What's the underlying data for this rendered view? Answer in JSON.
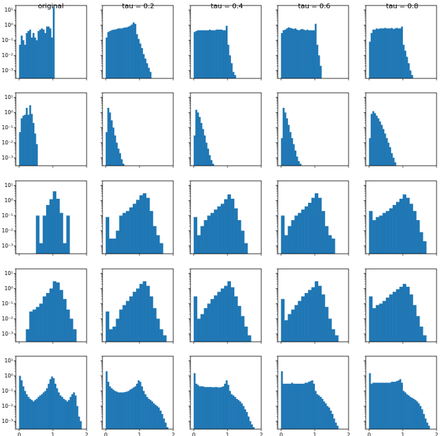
{
  "figure": {
    "column_titles": [
      "original",
      "tau = 0.2",
      "tau = 0.4",
      "tau = 0.6",
      "tau = 0.8"
    ]
  },
  "chart_data": {
    "type": "bar",
    "layout": "5x5 grid of log-scale histograms",
    "bar_color": "#1f77b4",
    "y_scale": "log",
    "ylim": [
      0.0003,
      20
    ],
    "y_ticks": [
      10,
      1,
      0.1,
      0.01,
      0.001
    ],
    "y_tick_labels": [
      "10¹",
      "10⁰",
      "10⁻¹",
      "10⁻²",
      "10⁻³"
    ],
    "x_ticks": [
      0,
      1,
      2
    ],
    "x_tick_labels": [
      "0",
      "1",
      "2"
    ],
    "xlim": [
      -0.1,
      2.0
    ],
    "rows": [
      {
        "panels": [
          {
            "bin_start": 0.0,
            "bin_width": 0.05,
            "values": [
              0.05,
              0.2,
              0.1,
              0.05,
              0.3,
              0.4,
              0.5,
              0.15,
              0.3,
              0.15,
              0.1,
              0.4,
              0.5,
              0.6,
              0.5,
              0.3,
              0.8,
              0.8,
              0.6,
              0.15,
              16
            ]
          },
          {
            "bin_start": 0.0,
            "bin_width": 0.05,
            "values": [
              0.15,
              0.35,
              0.4,
              0.45,
              0.5,
              0.5,
              0.55,
              0.6,
              0.6,
              0.6,
              0.65,
              0.7,
              0.7,
              0.8,
              0.9,
              1.1,
              1.5,
              1.2,
              0.25,
              0.12,
              0.06,
              0.03,
              0.012,
              0.006,
              0.003,
              0.0015,
              0.0008
            ]
          },
          {
            "bin_start": 0.0,
            "bin_width": 0.05,
            "values": [
              0.35,
              0.4,
              0.45,
              0.45,
              0.45,
              0.45,
              0.45,
              0.45,
              0.45,
              0.5,
              0.45,
              0.45,
              0.45,
              0.5,
              0.5,
              0.5,
              0.5,
              0.45,
              0.45,
              0.9,
              0.05,
              0.01,
              0.003,
              0.0008,
              0.0005
            ]
          },
          {
            "bin_start": 0.0,
            "bin_width": 0.05,
            "values": [
              0.3,
              0.45,
              0.5,
              0.6,
              0.7,
              0.65,
              0.6,
              0.55,
              0.6,
              0.5,
              0.45,
              0.5,
              0.55,
              0.5,
              0.45,
              0.5,
              0.45,
              0.45,
              0.45,
              0.45,
              1.2,
              0.05,
              0.01,
              0.002
            ]
          },
          {
            "bin_start": 0.0,
            "bin_width": 0.05,
            "values": [
              0.08,
              0.3,
              0.5,
              0.5,
              0.6,
              0.55,
              0.6,
              0.6,
              0.6,
              0.65,
              0.6,
              0.6,
              0.6,
              0.65,
              0.55,
              0.6,
              0.65,
              0.6,
              0.6,
              0.8,
              0.05,
              0.02,
              0.008,
              0.003,
              0.001,
              0.0005
            ]
          }
        ]
      },
      {
        "panels": [
          {
            "bin_start": 0.0,
            "bin_width": 0.05,
            "values": [
              0.05,
              0.4,
              0.6,
              0.7,
              2,
              0.7,
              3,
              0.8,
              0.2,
              0.04,
              0.008
            ]
          },
          {
            "bin_start": 0.0,
            "bin_width": 0.05,
            "values": [
              0.05,
              2,
              1,
              0.3,
              0.1,
              0.03,
              0.01,
              0.004,
              0.002,
              0.0008,
              0.0004
            ]
          },
          {
            "bin_start": 0.0,
            "bin_width": 0.05,
            "values": [
              0.03,
              1.5,
              1,
              0.5,
              0.2,
              0.08,
              0.03,
              0.01,
              0.004,
              0.0015,
              0.0007,
              0.0004
            ]
          },
          {
            "bin_start": 0.0,
            "bin_width": 0.05,
            "values": [
              0.02,
              2,
              1,
              0.4,
              0.15,
              0.05,
              0.02,
              0.008,
              0.003,
              0.0012,
              0.0006,
              0.0004
            ]
          },
          {
            "bin_start": 0.0,
            "bin_width": 0.05,
            "values": [
              0.02,
              0.8,
              1.2,
              0.9,
              0.6,
              0.4,
              0.25,
              0.15,
              0.08,
              0.04,
              0.02,
              0.01,
              0.005,
              0.002,
              0.001,
              0.0005,
              0.0003
            ]
          }
        ]
      },
      {
        "panels": [
          {
            "bin_start": 0.0,
            "bin_width": 0.1,
            "values": [
              0,
              0,
              0,
              0,
              0,
              0.1,
              0.0015,
              0.1,
              0.5,
              1.2,
              4,
              1.3,
              0.15,
              0.0015,
              0.1
            ]
          },
          {
            "bin_start": 0.0,
            "bin_width": 0.1,
            "values": [
              0.08,
              0.003,
              0.003,
              0.01,
              0.1,
              0.15,
              0.2,
              0.35,
              0.6,
              1.1,
              2.2,
              3,
              1.5,
              0.2,
              0.02,
              0.005,
              0.0015
            ]
          },
          {
            "bin_start": 0.0,
            "bin_width": 0.1,
            "values": [
              0.08,
              0.005,
              0.02,
              0.05,
              0.1,
              0.15,
              0.25,
              0.4,
              0.6,
              1.2,
              2.5,
              1.3,
              0.3,
              0.05,
              0.01,
              0.0015
            ]
          },
          {
            "bin_start": 0.0,
            "bin_width": 0.1,
            "values": [
              0.1,
              0.005,
              0.02,
              0.05,
              0.1,
              0.15,
              0.25,
              0.4,
              0.7,
              1.5,
              3,
              1.5,
              0.2,
              0.02,
              0.005,
              0.003
            ]
          },
          {
            "bin_start": 0.0,
            "bin_width": 0.1,
            "values": [
              0.2,
              0.05,
              0.08,
              0.1,
              0.15,
              0.2,
              0.3,
              0.5,
              0.8,
              1.3,
              2.5,
              1.5,
              0.6,
              0.2,
              0.05,
              0.008,
              0.002
            ]
          }
        ]
      },
      {
        "panels": [
          {
            "bin_start": 0.2,
            "bin_width": 0.1,
            "values": [
              0.002,
              0.03,
              0.04,
              0.06,
              0.1,
              0.3,
              0.5,
              1,
              3,
              2.5,
              0.8,
              0.2,
              0.04,
              0.01,
              0.002
            ]
          },
          {
            "bin_start": 0.0,
            "bin_width": 0.1,
            "values": [
              0.03,
              0.002,
              0.003,
              0.01,
              0.04,
              0.08,
              0.15,
              0.3,
              0.6,
              1,
              2,
              3,
              1.5,
              0.3,
              0.05,
              0.01,
              0.002,
              0.0008
            ]
          },
          {
            "bin_start": 0.0,
            "bin_width": 0.1,
            "values": [
              0.3,
              0.01,
              0.02,
              0.05,
              0.1,
              0.2,
              0.35,
              0.6,
              1,
              1.5,
              3,
              1.2,
              0.3,
              0.07,
              0.015,
              0.003,
              0.0008
            ]
          },
          {
            "bin_start": 0.0,
            "bin_width": 0.1,
            "values": [
              0.2,
              0.008,
              0.02,
              0.04,
              0.08,
              0.15,
              0.3,
              0.5,
              0.8,
              1.2,
              3,
              1.5,
              0.4,
              0.06,
              0.01,
              0.002,
              0.0008
            ]
          },
          {
            "bin_start": 0.0,
            "bin_width": 0.1,
            "values": [
              0.3,
              0.05,
              0.08,
              0.1,
              0.15,
              0.25,
              0.4,
              0.6,
              0.9,
              1.3,
              2,
              1.3,
              0.4,
              0.08,
              0.015,
              0.003,
              0.0008
            ]
          }
        ]
      },
      {
        "panels": [
          {
            "bin_start": 0.0,
            "bin_width": 0.05,
            "values": [
              1,
              0.5,
              0.2,
              0.1,
              0.06,
              0.04,
              0.03,
              0.025,
              0.02,
              0.025,
              0.03,
              0.04,
              0.05,
              0.06,
              0.08,
              0.1,
              0.15,
              0.3,
              0.6,
              0.9,
              0.7,
              0.3,
              0.15,
              0.08,
              0.05,
              0.04,
              0.03,
              0.025,
              0.02,
              0.025,
              0.04,
              0.06,
              0.08,
              0.05,
              0.01,
              0.002,
              0.001
            ]
          },
          {
            "bin_start": 0.0,
            "bin_width": 0.05,
            "values": [
              2,
              0.4,
              0.2,
              0.15,
              0.12,
              0.1,
              0.09,
              0.08,
              0.08,
              0.08,
              0.08,
              0.085,
              0.09,
              0.1,
              0.12,
              0.14,
              0.17,
              0.2,
              0.3,
              0.5,
              0.4,
              0.2,
              0.1,
              0.06,
              0.04,
              0.03,
              0.025,
              0.02,
              0.015,
              0.012,
              0.01,
              0.008,
              0.005,
              0.003,
              0.0015,
              0.0008,
              0.0004
            ]
          },
          {
            "bin_start": 0.0,
            "bin_width": 0.05,
            "values": [
              1.5,
              0.3,
              0.25,
              0.2,
              0.2,
              0.2,
              0.18,
              0.18,
              0.18,
              0.18,
              0.18,
              0.17,
              0.18,
              0.18,
              0.17,
              0.17,
              0.18,
              0.2,
              0.3,
              0.5,
              0.25,
              0.1,
              0.06,
              0.05,
              0.04,
              0.03,
              0.025,
              0.02,
              0.015,
              0.01,
              0.006,
              0.004,
              0.002,
              0.001,
              0.0006,
              0.0004
            ]
          },
          {
            "bin_start": 0.0,
            "bin_width": 0.05,
            "values": [
              2,
              0.3,
              0.3,
              0.3,
              0.3,
              0.3,
              0.35,
              0.3,
              0.3,
              0.3,
              0.3,
              0.3,
              0.3,
              0.3,
              0.35,
              0.35,
              0.4,
              0.45,
              0.5,
              0.3,
              0.1,
              0.06,
              0.05,
              0.04,
              0.03,
              0.02,
              0.015,
              0.01,
              0.008,
              0.005,
              0.003,
              0.0015,
              0.0008,
              0.0005
            ]
          },
          {
            "bin_start": 0.0,
            "bin_width": 0.05,
            "values": [
              1.5,
              0.3,
              0.35,
              0.35,
              0.35,
              0.35,
              0.35,
              0.35,
              0.35,
              0.35,
              0.35,
              0.35,
              0.35,
              0.4,
              0.4,
              0.4,
              0.45,
              0.5,
              0.6,
              0.35,
              0.1,
              0.08,
              0.06,
              0.05,
              0.04,
              0.035,
              0.03,
              0.025,
              0.02,
              0.015,
              0.01,
              0.006,
              0.003,
              0.0015,
              0.0008,
              0.0005
            ]
          }
        ]
      }
    ]
  }
}
